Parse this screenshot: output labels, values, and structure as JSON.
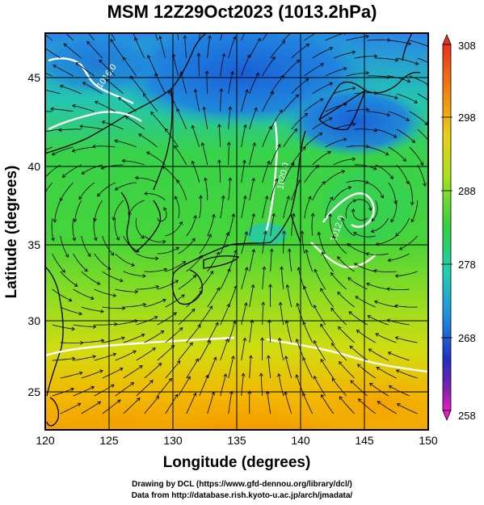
{
  "title": "MSM 12Z29Oct2023 (1013.2hPa)",
  "x_axis": {
    "label": "Longitude (degrees)",
    "ticks": [
      "120",
      "125",
      "130",
      "135",
      "140",
      "145",
      "150"
    ]
  },
  "y_axis": {
    "label": "Latitude  (degrees)",
    "ticks": [
      "25",
      "30",
      "35",
      "40",
      "45"
    ]
  },
  "colorbar": {
    "ticks": [
      "308",
      "298",
      "288",
      "278",
      "268",
      "258"
    ]
  },
  "contour_labels": [
    "1020.0",
    "1016.0",
    "1012.0"
  ],
  "credits": {
    "line1": "Drawing by DCL (https://www.gfd-dennou.org/library/dcl/)",
    "line2": "Data from http://database.rish.kyoto-u.ac.jp/arch/jmadata/"
  },
  "colors": {
    "cold": "#1a6fe0",
    "cool": "#20d0b8",
    "mid": "#3ed23e",
    "warm": "#b8e020",
    "hot": "#f0a000",
    "contour": "#ffffff"
  }
}
